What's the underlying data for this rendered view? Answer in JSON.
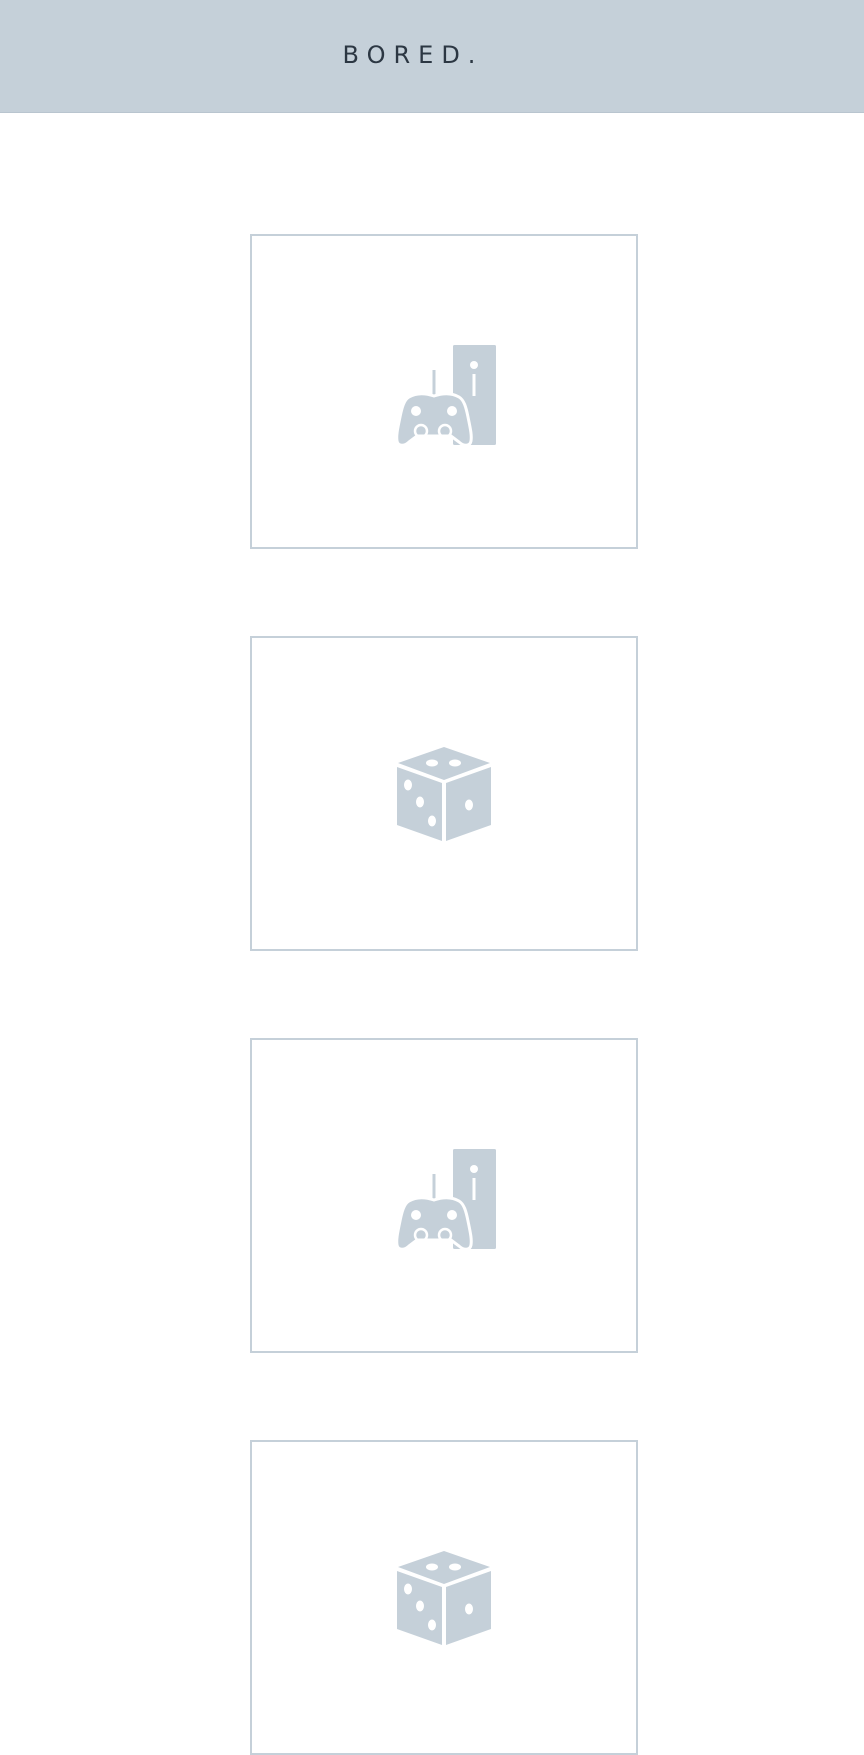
{
  "header": {
    "title": "BORED."
  },
  "colors": {
    "header_bg": "#c5d0d9",
    "title_text": "#2c3743",
    "card_border": "#c5d0d9",
    "icon": "#c5d0d9"
  },
  "cards": [
    {
      "icon": "game-console-icon"
    },
    {
      "icon": "dice-icon"
    },
    {
      "icon": "game-console-icon"
    },
    {
      "icon": "dice-icon"
    }
  ]
}
